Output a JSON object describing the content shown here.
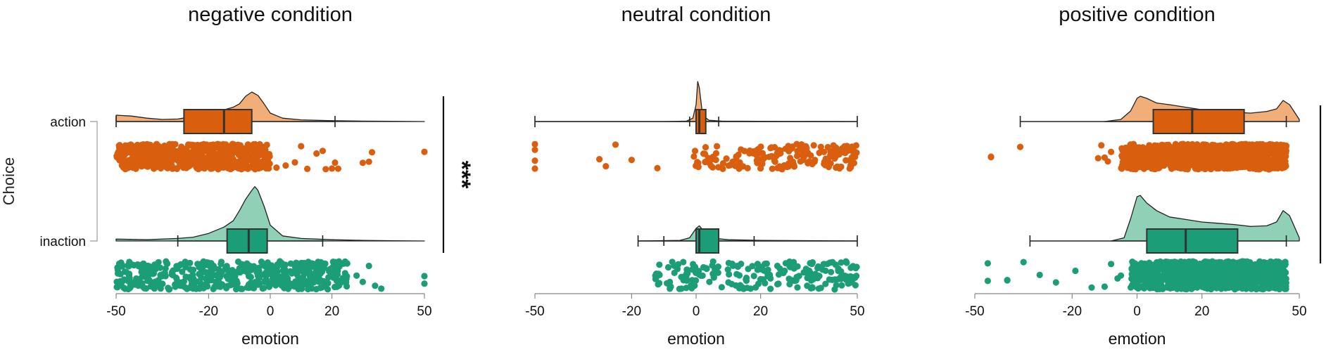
{
  "y_axis_label": "Choice",
  "choices": [
    "action",
    "inaction"
  ],
  "colors": {
    "action": "#d95f0e",
    "action_light": "#f2ae78",
    "inaction": "#1b9e77",
    "inaction_light": "#8fd0b6",
    "line": "#333333"
  },
  "significance_marker": "***",
  "chart_data": [
    {
      "type": "raincloud",
      "title": "negative condition",
      "xlabel": "emotion",
      "xlim": [
        -50,
        50
      ],
      "ticks": [
        -50,
        -20,
        0,
        20,
        50
      ],
      "tick_labels": [
        "-50",
        "-20",
        "0",
        "20",
        "50"
      ],
      "show_choice_labels": true,
      "significance": "***",
      "series": [
        {
          "name": "action",
          "box": {
            "whisker_low": -50,
            "q1": -28,
            "median": -15,
            "q3": -6,
            "whisker_high": 21
          },
          "density_x": [
            -50,
            -45,
            -40,
            -35,
            -30,
            -25,
            -20,
            -15,
            -12,
            -10,
            -8,
            -6,
            -4,
            -2,
            0,
            4,
            10,
            20,
            30,
            40,
            50
          ],
          "density_y": [
            0.15,
            0.13,
            0.08,
            0.05,
            0.06,
            0.12,
            0.2,
            0.28,
            0.34,
            0.42,
            0.6,
            0.7,
            0.62,
            0.42,
            0.2,
            0.08,
            0.04,
            0.02,
            0.01,
            0.005,
            0.0
          ],
          "points": {
            "range": [
              -50,
              0
            ],
            "count": 650,
            "outliers": [
              2,
              5,
              8,
              10,
              12,
              15,
              17,
              18,
              20,
              21,
              22,
              30,
              32,
              33,
              50
            ]
          }
        },
        {
          "name": "inaction",
          "box": {
            "whisker_low": -30,
            "q1": -14,
            "median": -7,
            "q3": -1,
            "whisker_high": 17
          },
          "density_x": [
            -50,
            -40,
            -30,
            -25,
            -20,
            -15,
            -12,
            -10,
            -8,
            -6,
            -5,
            -4,
            -2,
            0,
            4,
            10,
            20,
            30,
            40,
            50
          ],
          "density_y": [
            0.03,
            0.02,
            0.04,
            0.06,
            0.12,
            0.22,
            0.32,
            0.48,
            0.66,
            0.8,
            0.86,
            0.8,
            0.55,
            0.25,
            0.08,
            0.04,
            0.02,
            0.01,
            0.005,
            0.0
          ],
          "points": {
            "range": [
              -50,
              25
            ],
            "count": 520,
            "outliers": [
              28,
              30,
              32,
              34,
              36,
              50,
              50
            ]
          }
        }
      ]
    },
    {
      "type": "raincloud",
      "title": "neutral condition",
      "xlabel": "emotion",
      "xlim": [
        -50,
        50
      ],
      "ticks": [
        -50,
        -20,
        0,
        20,
        50
      ],
      "tick_labels": [
        "-50",
        "-20",
        "0",
        "20",
        "50"
      ],
      "show_choice_labels": false,
      "significance": "",
      "series": [
        {
          "name": "action",
          "box": {
            "whisker_low": -50,
            "q1": 0,
            "median": 1,
            "q3": 3,
            "whisker_high": 50
          },
          "inner_whiskers": [
            -2,
            7
          ],
          "density_x": [
            -50,
            -10,
            -3,
            -1,
            0,
            0.5,
            1,
            2,
            4,
            8,
            20,
            50
          ],
          "density_y": [
            0.0,
            0.0,
            0.01,
            0.08,
            0.4,
            0.95,
            0.8,
            0.15,
            0.03,
            0.01,
            0.005,
            0.0
          ],
          "points": {
            "range": [
              -2,
              50
            ],
            "count": 170,
            "outliers": [
              -50,
              -50,
              -50,
              -50,
              -30,
              -28,
              -25,
              -20,
              -12
            ]
          }
        },
        {
          "name": "inaction",
          "box": {
            "whisker_low": -18,
            "q1": 0,
            "median": 1,
            "q3": 7,
            "whisker_high": 50
          },
          "inner_whiskers": [
            -10,
            18
          ],
          "density_x": [
            -18,
            -5,
            -2,
            0,
            1,
            2,
            4,
            6,
            10,
            20,
            50
          ],
          "density_y": [
            0.0,
            0.01,
            0.05,
            0.2,
            0.24,
            0.18,
            0.08,
            0.04,
            0.02,
            0.01,
            0.0
          ],
          "points": {
            "range": [
              -13,
              50
            ],
            "count": 200,
            "outliers": []
          }
        }
      ]
    },
    {
      "type": "raincloud",
      "title": "positive condition",
      "xlabel": "emotion",
      "xlim": [
        -50,
        50
      ],
      "ticks": [
        -50,
        -20,
        0,
        20,
        50
      ],
      "tick_labels": [
        "-50",
        "-20",
        "0",
        "20",
        "50"
      ],
      "show_choice_labels": false,
      "significance": "***",
      "series": [
        {
          "name": "action",
          "box": {
            "whisker_low": -36,
            "q1": 5,
            "median": 17,
            "q3": 33,
            "whisker_high": 46
          },
          "density_x": [
            -10,
            -5,
            -2,
            0,
            1,
            3,
            6,
            10,
            15,
            20,
            25,
            30,
            35,
            40,
            43,
            45,
            47,
            50
          ],
          "density_y": [
            0.0,
            0.05,
            0.25,
            0.55,
            0.6,
            0.55,
            0.44,
            0.4,
            0.34,
            0.28,
            0.25,
            0.22,
            0.2,
            0.24,
            0.3,
            0.5,
            0.4,
            0.05
          ],
          "points": {
            "range": [
              -5,
              46
            ],
            "count": 900,
            "outliers": [
              -45,
              -45,
              -36,
              -12,
              -11,
              -10,
              -9,
              -8
            ]
          }
        },
        {
          "name": "inaction",
          "box": {
            "whisker_low": -33,
            "q1": 3,
            "median": 15,
            "q3": 31,
            "whisker_high": 46
          },
          "density_x": [
            -8,
            -4,
            -2,
            0,
            1,
            3,
            6,
            10,
            15,
            20,
            25,
            30,
            35,
            40,
            43,
            45,
            47,
            50
          ],
          "density_y": [
            0.0,
            0.05,
            0.35,
            0.7,
            0.72,
            0.6,
            0.48,
            0.38,
            0.34,
            0.3,
            0.28,
            0.26,
            0.23,
            0.24,
            0.3,
            0.48,
            0.4,
            0.05
          ],
          "points": {
            "range": [
              -2,
              46
            ],
            "count": 900,
            "outliers": [
              -46,
              -46,
              -40,
              -40,
              -35,
              -30,
              -25,
              -19,
              -14,
              -10,
              -8,
              -6,
              -5
            ]
          }
        }
      ]
    }
  ]
}
